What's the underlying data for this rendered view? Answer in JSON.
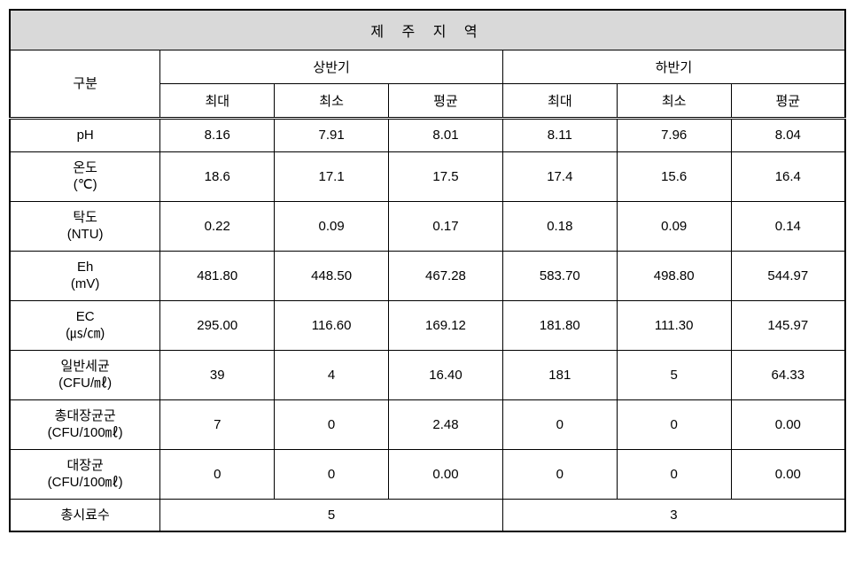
{
  "table": {
    "title": "제 주 지 역",
    "category_label": "구분",
    "period1": {
      "label": "상반기",
      "sub": [
        "최대",
        "최소",
        "평균"
      ]
    },
    "period2": {
      "label": "하반기",
      "sub": [
        "최대",
        "최소",
        "평균"
      ]
    },
    "rows": [
      {
        "param": "pH",
        "p1": [
          "8.16",
          "7.91",
          "8.01"
        ],
        "p2": [
          "8.11",
          "7.96",
          "8.04"
        ]
      },
      {
        "param": "온도\n(℃)",
        "p1": [
          "18.6",
          "17.1",
          "17.5"
        ],
        "p2": [
          "17.4",
          "15.6",
          "16.4"
        ]
      },
      {
        "param": "탁도\n(NTU)",
        "p1": [
          "0.22",
          "0.09",
          "0.17"
        ],
        "p2": [
          "0.18",
          "0.09",
          "0.14"
        ]
      },
      {
        "param": "Eh\n(mV)",
        "p1": [
          "481.80",
          "448.50",
          "467.28"
        ],
        "p2": [
          "583.70",
          "498.80",
          "544.97"
        ]
      },
      {
        "param": "EC\n(㎲/㎝)",
        "p1": [
          "295.00",
          "116.60",
          "169.12"
        ],
        "p2": [
          "181.80",
          "111.30",
          "145.97"
        ]
      },
      {
        "param": "일반세균\n(CFU/㎖)",
        "p1": [
          "39",
          "4",
          "16.40"
        ],
        "p2": [
          "181",
          "5",
          "64.33"
        ]
      },
      {
        "param": "총대장균군\n(CFU/100㎖)",
        "p1": [
          "7",
          "0",
          "2.48"
        ],
        "p2": [
          "0",
          "0",
          "0.00"
        ]
      },
      {
        "param": "대장균\n(CFU/100㎖)",
        "p1": [
          "0",
          "0",
          "0.00"
        ],
        "p2": [
          "0",
          "0",
          "0.00"
        ]
      }
    ],
    "total_samples_label": "총시료수",
    "total_samples": {
      "p1": "5",
      "p2": "3"
    }
  }
}
